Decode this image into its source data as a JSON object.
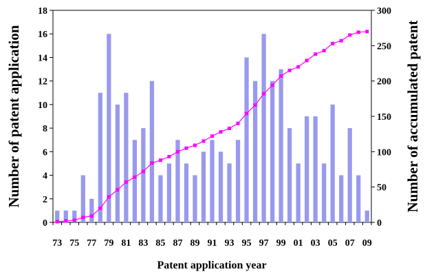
{
  "chart_data": {
    "type": "bar",
    "xlabel": "Patent application year",
    "ylabel": "Number of patent application",
    "y2label": "Number of accumulated patent",
    "categories": [
      "73",
      "74",
      "75",
      "76",
      "77",
      "78",
      "79",
      "80",
      "81",
      "82",
      "83",
      "84",
      "85",
      "86",
      "87",
      "88",
      "89",
      "90",
      "91",
      "92",
      "93",
      "94",
      "95",
      "96",
      "97",
      "98",
      "99",
      "00",
      "01",
      "02",
      "03",
      "04",
      "05",
      "06",
      "07",
      "08",
      "09"
    ],
    "x_tick_labels": [
      "73",
      "75",
      "77",
      "79",
      "81",
      "83",
      "85",
      "87",
      "89",
      "91",
      "93",
      "95",
      "97",
      "99",
      "01",
      "03",
      "05",
      "07",
      "09"
    ],
    "series": [
      {
        "axis": "left",
        "type": "bar",
        "color": "#9999ee",
        "values": [
          1,
          1,
          1,
          4,
          2,
          11,
          16,
          10,
          11,
          7,
          8,
          12,
          4,
          5,
          7,
          5,
          4,
          6,
          7,
          6,
          5,
          7,
          14,
          12,
          16,
          12,
          13,
          8,
          5,
          9,
          9,
          5,
          10,
          4,
          8,
          4,
          1
        ]
      },
      {
        "axis": "right",
        "type": "line",
        "color": "#ff00ff",
        "values": [
          1,
          2,
          3,
          7,
          9,
          20,
          36,
          46,
          57,
          64,
          72,
          84,
          88,
          93,
          100,
          105,
          109,
          115,
          122,
          128,
          133,
          140,
          154,
          166,
          182,
          194,
          207,
          215,
          220,
          229,
          238,
          243,
          253,
          257,
          265,
          269,
          270
        ]
      }
    ],
    "ylim": [
      0,
      18
    ],
    "yticks": [
      0,
      2,
      4,
      6,
      8,
      10,
      12,
      14,
      16,
      18
    ],
    "y2lim": [
      0,
      300
    ],
    "y2ticks": [
      0,
      50,
      100,
      150,
      200,
      250,
      300
    ],
    "grid": false,
    "legend": "none"
  }
}
